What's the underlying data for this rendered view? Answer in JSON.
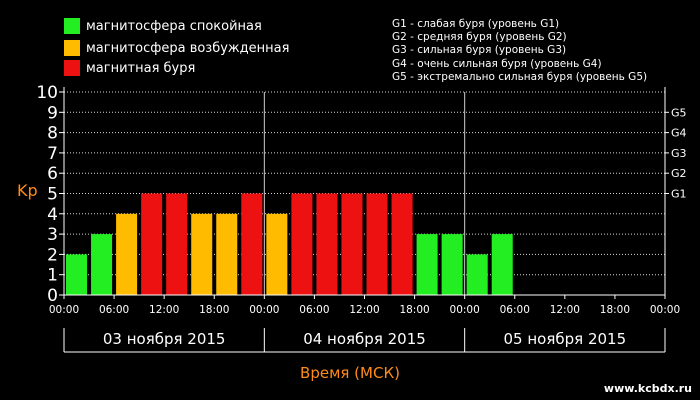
{
  "legend": [
    {
      "label": "магнитосфера спокойная",
      "color": "#22ee22"
    },
    {
      "label": "магнитосфера возбужденная",
      "color": "#ffbb00"
    },
    {
      "label": "магнитная буря",
      "color": "#ee1111"
    }
  ],
  "g_legend": [
    "G1 - слабая буря (уровень G1)",
    "G2 - средняя буря (уровень G2)",
    "G3 - сильная буря (уровень G3)",
    "G4 - очень сильная буря (уровень G4)",
    "G5 - экстремально сильная буря (уровень G5)"
  ],
  "watermark": "www.kcbdx.ru",
  "chart_data": {
    "type": "bar",
    "ylabel": "Kp",
    "xlabel": "Время (МСК)",
    "ylim": [
      0,
      10
    ],
    "yticks": [
      "0",
      "1",
      "2",
      "3",
      "4",
      "5",
      "6",
      "7",
      "8",
      "9",
      "10"
    ],
    "right_ticks": [
      {
        "label": "G1",
        "y": 5
      },
      {
        "label": "G2",
        "y": 6
      },
      {
        "label": "G3",
        "y": 7
      },
      {
        "label": "G4",
        "y": 8
      },
      {
        "label": "G5",
        "y": 9
      }
    ],
    "grid": true,
    "days": [
      "03 ноября 2015",
      "04 ноября 2015",
      "05 ноября 2015"
    ],
    "time_ticks": [
      "00:00",
      "06:00",
      "12:00",
      "18:00",
      "00:00",
      "06:00",
      "12:00",
      "18:00",
      "00:00",
      "06:00",
      "12:00",
      "18:00",
      "00:00"
    ],
    "interval_hours": 3,
    "values": [
      2,
      3,
      4,
      5,
      5,
      4,
      4,
      5,
      4,
      5,
      5,
      5,
      5,
      5,
      3,
      3,
      2,
      3
    ],
    "levels": [
      "quiet",
      "quiet",
      "active",
      "storm",
      "storm",
      "active",
      "active",
      "storm",
      "active",
      "storm",
      "storm",
      "storm",
      "storm",
      "storm",
      "quiet",
      "quiet",
      "quiet",
      "quiet"
    ],
    "colors": {
      "quiet": "#22ee22",
      "active": "#ffbb00",
      "storm": "#ee1111"
    }
  }
}
